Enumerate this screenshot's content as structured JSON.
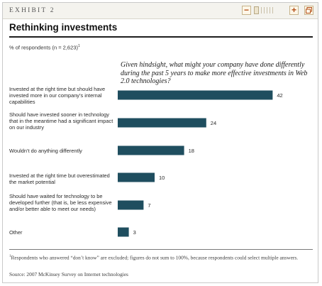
{
  "header": {
    "exhibit": "EXHIBIT 2",
    "title": "Rethinking investments"
  },
  "toolbar": {
    "zoom_out_label": "−",
    "zoom_in_label": "+"
  },
  "chart_data": {
    "type": "bar",
    "orientation": "horizontal",
    "respondents_note": "% of respondents (n = 2,623)",
    "respondents_footnote_mark": "1",
    "question": "Given hindsight, what might your company have done differently during the past 5 years to make more effective investments in Web 2.0 technologies?",
    "categories": [
      "Invested at the right time but should have invested more in our company’s internal capabilities",
      "Should have invested sooner in technology that in the meantime had a significant impact on our industry",
      "Wouldn’t do anything differently",
      "Invested at the right time but overestimated the market potential",
      "Should have waited for technology to be developed further (that is, be less expensive and/or better able to meet our needs)",
      "Other"
    ],
    "values": [
      42,
      24,
      18,
      10,
      7,
      3
    ],
    "value_labels": [
      "42",
      "24",
      "18",
      "10",
      "7",
      "3"
    ],
    "bar_color": "#1f4e5f",
    "grid": false
  },
  "footer": {
    "footnote_mark": "1",
    "footnote": "Respondents who answered “don’t know” are excluded; figures do not sum to 100%, because respondents could select multiple answers.",
    "source": "Source: 2007 McKinsey Survey on Internet technologies"
  }
}
